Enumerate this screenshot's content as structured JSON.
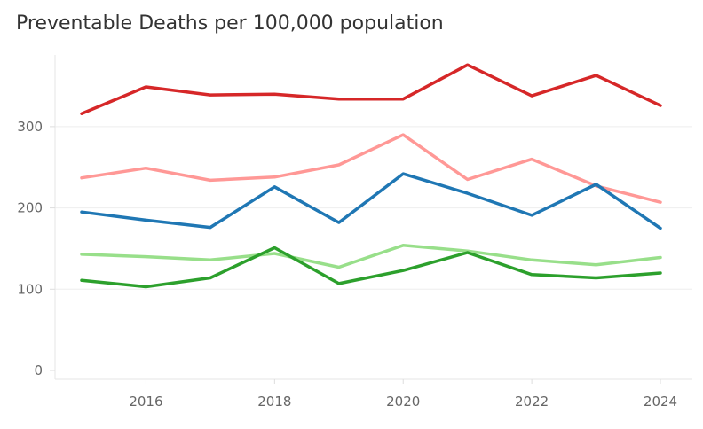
{
  "chart_data": {
    "type": "line",
    "title": "Preventable Deaths per 100,000 population",
    "xlabel": "",
    "ylabel": "",
    "x": [
      2015,
      2016,
      2017,
      2018,
      2019,
      2020,
      2021,
      2022,
      2023,
      2024
    ],
    "xticks": [
      "2016",
      "2018",
      "2020",
      "2022",
      "2024"
    ],
    "yticks": [
      "0",
      "100",
      "200",
      "300"
    ],
    "ylim": [
      0,
      400
    ],
    "grid": true,
    "legend": "none",
    "series": [
      {
        "color": "#d62728",
        "values": [
          316,
          349,
          339,
          340,
          334,
          334,
          376,
          338,
          363,
          326
        ]
      },
      {
        "color": "#ff9896",
        "values": [
          237,
          249,
          234,
          238,
          253,
          290,
          235,
          260,
          227,
          207
        ]
      },
      {
        "color": "#1f77b4",
        "values": [
          195,
          185,
          176,
          226,
          182,
          242,
          218,
          191,
          229,
          175
        ]
      },
      {
        "color": "#98df8a",
        "values": [
          143,
          140,
          136,
          144,
          127,
          154,
          147,
          136,
          130,
          139
        ]
      },
      {
        "color": "#2ca02c",
        "values": [
          111,
          103,
          114,
          151,
          107,
          123,
          145,
          118,
          114,
          120
        ]
      }
    ]
  }
}
